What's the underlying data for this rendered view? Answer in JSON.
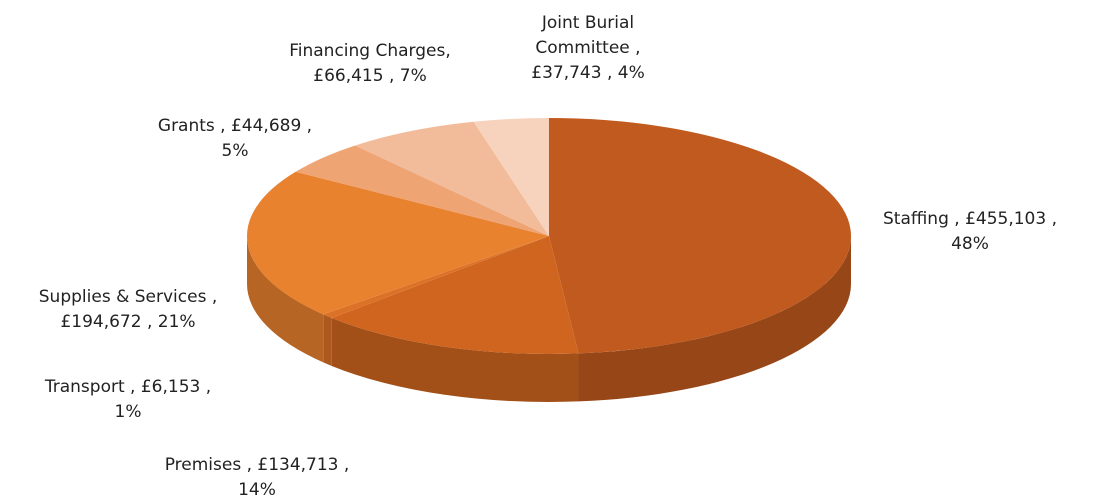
{
  "chart_data": {
    "type": "pie",
    "title": "",
    "three_d": true,
    "start": "12 o'clock",
    "direction": "clockwise",
    "legend": "none",
    "slices": [
      {
        "name": "Staffing",
        "value": 455103,
        "percent": 48,
        "color": "#C15A1E",
        "label_lines": [
          "Staffing ,  £455,103 ,",
          "48%"
        ]
      },
      {
        "name": "Premises",
        "value": 134713,
        "percent": 14,
        "color": "#D0651F",
        "label_lines": [
          "Premises ,  £134,713 ,",
          "14%"
        ]
      },
      {
        "name": "Transport",
        "value": 6153,
        "percent": 1,
        "color": "#DC7128",
        "label_lines": [
          "Transport ,  £6,153 ,",
          "1%"
        ]
      },
      {
        "name": "Supplies & Services",
        "value": 194672,
        "percent": 21,
        "color": "#E9822F",
        "label_lines": [
          "Supplies & Services ,",
          "£194,672 , 21%"
        ]
      },
      {
        "name": "Grants",
        "value": 44689,
        "percent": 5,
        "color": "#EFA474",
        "label_lines": [
          "Grants ,  £44,689 ,",
          "5%"
        ]
      },
      {
        "name": "Financing Charges",
        "value": 66415,
        "percent": 7,
        "color": "#F2BC9A",
        "label_lines": [
          "Financing Charges,",
          "£66,415 , 7%"
        ]
      },
      {
        "name": "Joint Burial Committee",
        "value": 37743,
        "percent": 4,
        "color": "#F7D3BE",
        "label_lines": [
          "Joint Burial",
          "Committee ,",
          "£37,743 , 4%"
        ]
      }
    ]
  }
}
